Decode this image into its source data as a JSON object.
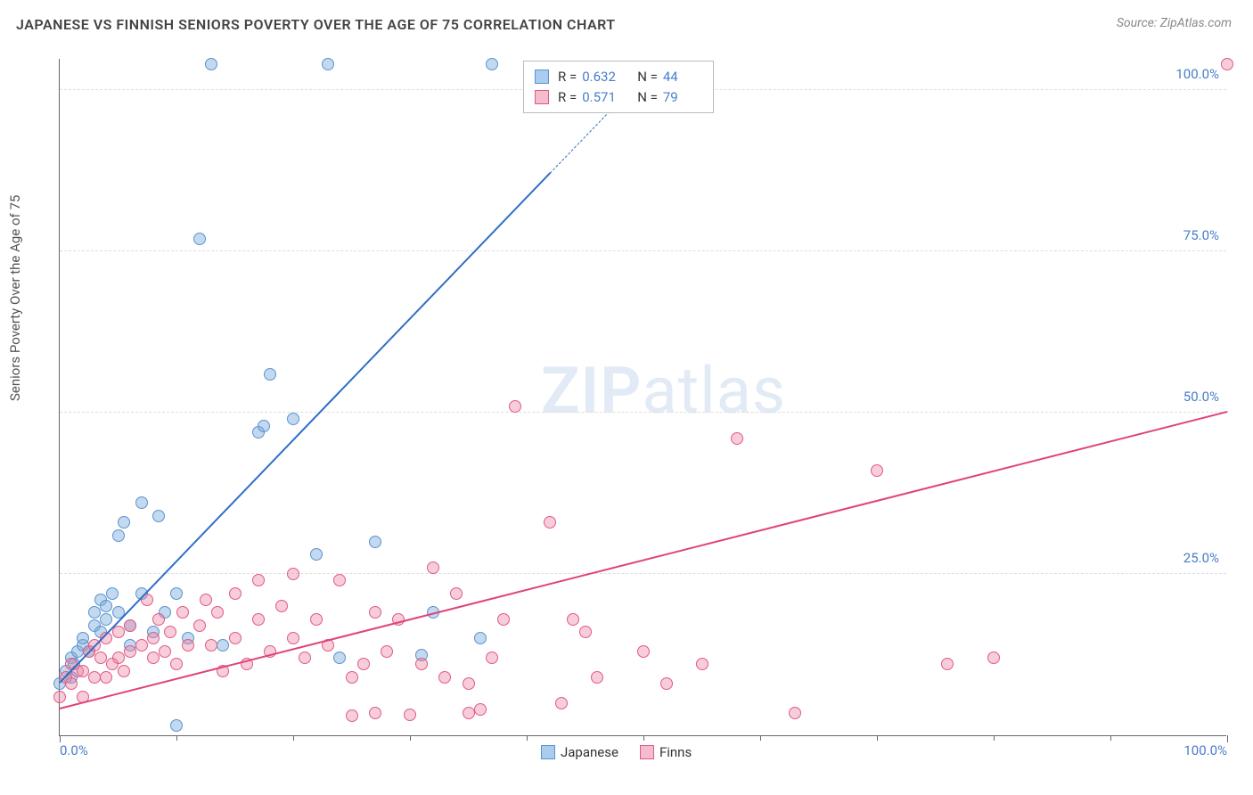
{
  "header": {
    "title": "JAPANESE VS FINNISH SENIORS POVERTY OVER THE AGE OF 75 CORRELATION CHART",
    "source": "Source: ZipAtlas.com"
  },
  "watermark": {
    "part1": "ZIP",
    "part2": "atlas"
  },
  "chart": {
    "type": "scatter",
    "ylabel": "Seniors Poverty Over the Age of 75",
    "background_color": "#ffffff",
    "grid_color": "#dddddd",
    "axis_color": "#666666",
    "tick_label_color": "#4a7dc9",
    "xlim": [
      0,
      100
    ],
    "ylim": [
      0,
      105
    ],
    "ytick_values": [
      25,
      50,
      75,
      100
    ],
    "ytick_labels": [
      "25.0%",
      "50.0%",
      "75.0%",
      "100.0%"
    ],
    "xtick_majors": [
      0,
      100
    ],
    "xtick_labels": [
      "0.0%",
      "100.0%"
    ],
    "xtick_minors": [
      10,
      20,
      30,
      40,
      50,
      60,
      70,
      80,
      90
    ],
    "marker_radius": 7,
    "marker_border_width": 1.2,
    "series": [
      {
        "name": "Japanese",
        "fill": "rgba(120,170,220,0.45)",
        "stroke": "#5b93cf",
        "swatch_fill": "#a9cdee",
        "swatch_stroke": "#5b93cf",
        "R": "0.632",
        "N": "44",
        "trend": {
          "x1": 0,
          "y1": 8,
          "x2_solid": 42,
          "y2_solid": 87,
          "x2_dash": 50,
          "y2_dash": 102,
          "color": "#2f6fc7",
          "width": 2
        },
        "points": [
          [
            0,
            8
          ],
          [
            0.5,
            10
          ],
          [
            1,
            9
          ],
          [
            1,
            12
          ],
          [
            1.2,
            11
          ],
          [
            1.5,
            13
          ],
          [
            2,
            14
          ],
          [
            2,
            15
          ],
          [
            2.5,
            13
          ],
          [
            3,
            17
          ],
          [
            3,
            19
          ],
          [
            3.5,
            16
          ],
          [
            3.5,
            21
          ],
          [
            4,
            20
          ],
          [
            4,
            18
          ],
          [
            4.5,
            22
          ],
          [
            5,
            19
          ],
          [
            5,
            31
          ],
          [
            5.5,
            33
          ],
          [
            6,
            17
          ],
          [
            6,
            14
          ],
          [
            7,
            22
          ],
          [
            7,
            36
          ],
          [
            8,
            16
          ],
          [
            8.5,
            34
          ],
          [
            9,
            19
          ],
          [
            10,
            22
          ],
          [
            10,
            1.5
          ],
          [
            11,
            15
          ],
          [
            12,
            77
          ],
          [
            13,
            104
          ],
          [
            14,
            14
          ],
          [
            17,
            47
          ],
          [
            17.5,
            48
          ],
          [
            18,
            56
          ],
          [
            20,
            49
          ],
          [
            22,
            28
          ],
          [
            23,
            104
          ],
          [
            24,
            12
          ],
          [
            27,
            30
          ],
          [
            31,
            12.5
          ],
          [
            32,
            19
          ],
          [
            36,
            15
          ],
          [
            37,
            104
          ]
        ]
      },
      {
        "name": "Finns",
        "fill": "rgba(235,130,160,0.40)",
        "stroke": "#e05a87",
        "swatch_fill": "#f4bccd",
        "swatch_stroke": "#e05a87",
        "R": "0.571",
        "N": "79",
        "trend": {
          "x1": 0,
          "y1": 4,
          "x2_solid": 100,
          "y2_solid": 50,
          "color": "#e04379",
          "width": 2
        },
        "points": [
          [
            0,
            6
          ],
          [
            0.5,
            9
          ],
          [
            1,
            8
          ],
          [
            1,
            11
          ],
          [
            1.5,
            10
          ],
          [
            2,
            6
          ],
          [
            2,
            10
          ],
          [
            2.5,
            13
          ],
          [
            3,
            9
          ],
          [
            3,
            14
          ],
          [
            3.5,
            12
          ],
          [
            4,
            15
          ],
          [
            4,
            9
          ],
          [
            4.5,
            11
          ],
          [
            5,
            16
          ],
          [
            5,
            12
          ],
          [
            5.5,
            10
          ],
          [
            6,
            17
          ],
          [
            6,
            13
          ],
          [
            7,
            14
          ],
          [
            7.5,
            21
          ],
          [
            8,
            15
          ],
          [
            8,
            12
          ],
          [
            8.5,
            18
          ],
          [
            9,
            13
          ],
          [
            9.5,
            16
          ],
          [
            10,
            11
          ],
          [
            10.5,
            19
          ],
          [
            11,
            14
          ],
          [
            12,
            17
          ],
          [
            12.5,
            21
          ],
          [
            13,
            14
          ],
          [
            13.5,
            19
          ],
          [
            14,
            10
          ],
          [
            15,
            22
          ],
          [
            15,
            15
          ],
          [
            16,
            11
          ],
          [
            17,
            18
          ],
          [
            17,
            24
          ],
          [
            18,
            13
          ],
          [
            19,
            20
          ],
          [
            20,
            15
          ],
          [
            20,
            25
          ],
          [
            21,
            12
          ],
          [
            22,
            18
          ],
          [
            23,
            14
          ],
          [
            24,
            24
          ],
          [
            25,
            9
          ],
          [
            25,
            3
          ],
          [
            26,
            11
          ],
          [
            27,
            19
          ],
          [
            27,
            3.5
          ],
          [
            28,
            13
          ],
          [
            29,
            18
          ],
          [
            30,
            3.2
          ],
          [
            31,
            11
          ],
          [
            32,
            26
          ],
          [
            33,
            9
          ],
          [
            34,
            22
          ],
          [
            35,
            8
          ],
          [
            35,
            3.5
          ],
          [
            36,
            4
          ],
          [
            37,
            12
          ],
          [
            38,
            18
          ],
          [
            39,
            51
          ],
          [
            42,
            33
          ],
          [
            43,
            5
          ],
          [
            44,
            18
          ],
          [
            45,
            16
          ],
          [
            46,
            9
          ],
          [
            50,
            13
          ],
          [
            52,
            8
          ],
          [
            55,
            11
          ],
          [
            58,
            46
          ],
          [
            63,
            3.5
          ],
          [
            70,
            41
          ],
          [
            76,
            11
          ],
          [
            80,
            12
          ],
          [
            100,
            104
          ]
        ]
      }
    ],
    "legend_bottom": {
      "items": [
        {
          "swatch_fill": "#a9cdee",
          "swatch_stroke": "#5b93cf",
          "label": "Japanese"
        },
        {
          "swatch_fill": "#f4bccd",
          "swatch_stroke": "#e05a87",
          "label": "Finns"
        }
      ]
    }
  }
}
